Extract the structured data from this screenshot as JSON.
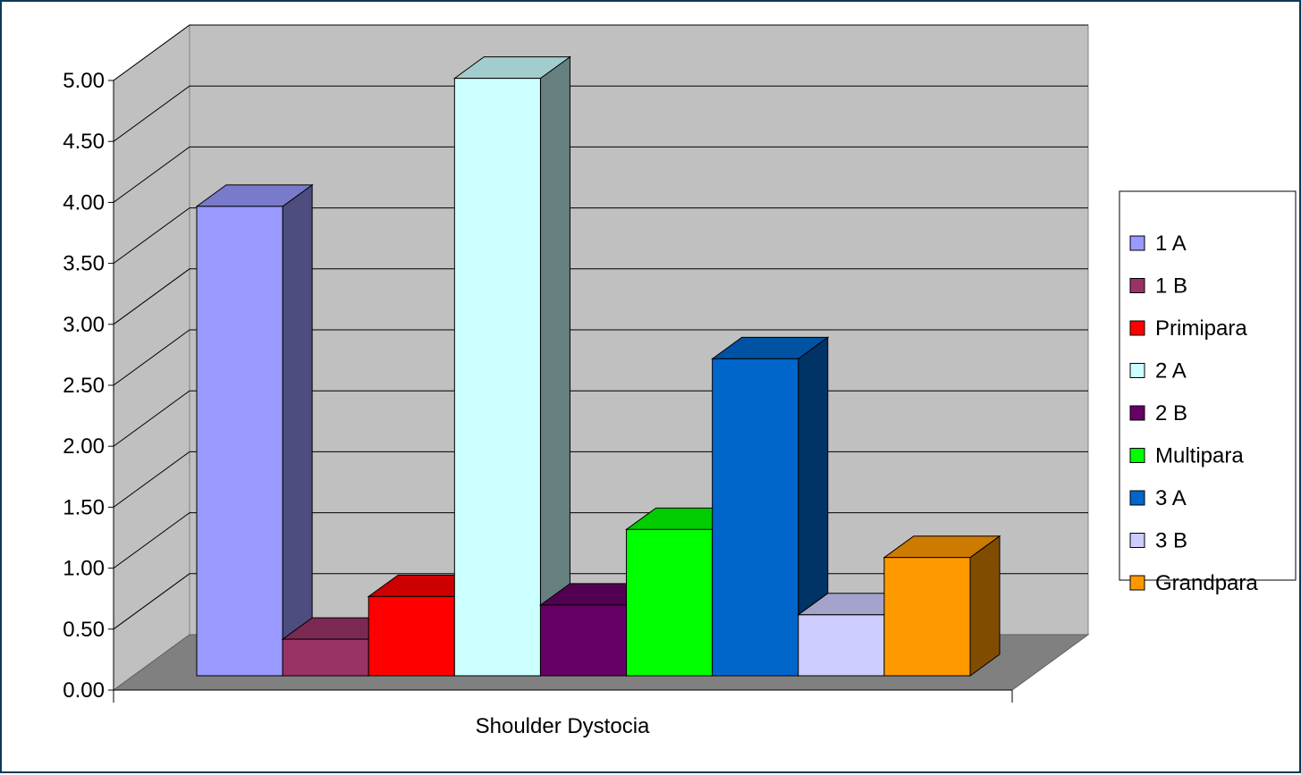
{
  "chart_data": {
    "type": "bar",
    "categories": [
      "Shoulder Dystocia"
    ],
    "series": [
      {
        "name": "1 A",
        "values": [
          3.85
        ],
        "color": "#9999ff",
        "side": "#4d4d80",
        "top": "#7a7acc"
      },
      {
        "name": "1 B",
        "values": [
          0.3
        ],
        "color": "#993366",
        "side": "#4d1a33",
        "top": "#7a2952"
      },
      {
        "name": "Primipara",
        "values": [
          0.65
        ],
        "color": "#ff0000",
        "side": "#800000",
        "top": "#cc0000"
      },
      {
        "name": "2 A",
        "values": [
          4.9
        ],
        "color": "#ccffff",
        "side": "#668080",
        "top": "#a3cccc"
      },
      {
        "name": "2 B",
        "values": [
          0.58
        ],
        "color": "#660066",
        "side": "#330033",
        "top": "#520052"
      },
      {
        "name": "Multipara",
        "values": [
          1.2
        ],
        "color": "#00ff00",
        "side": "#008000",
        "top": "#00cc00"
      },
      {
        "name": "3 A",
        "values": [
          2.6
        ],
        "color": "#0066cc",
        "side": "#003366",
        "top": "#0052a3"
      },
      {
        "name": "3 B",
        "values": [
          0.5
        ],
        "color": "#ccccff",
        "side": "#666680",
        "top": "#a3a3cc"
      },
      {
        "name": "Grandpara",
        "values": [
          0.97
        ],
        "color": "#ff9900",
        "side": "#804d00",
        "top": "#cc7a00"
      }
    ],
    "ylim": [
      0,
      5
    ],
    "yticks": [
      "0.00",
      "0.50",
      "1.00",
      "1.50",
      "2.00",
      "2.50",
      "3.00",
      "3.50",
      "4.00",
      "4.50",
      "5.00"
    ],
    "grid": true,
    "legend_position": "right",
    "colors": {
      "wall": "#c0c0c0",
      "floor": "#808080",
      "grid": "#000000"
    }
  }
}
